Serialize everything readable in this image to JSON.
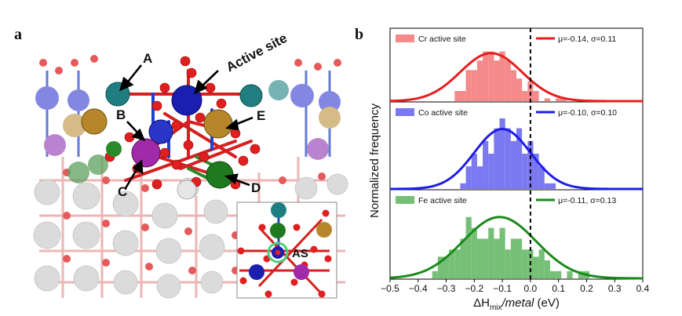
{
  "panel_a": {
    "letter": "a",
    "labels": {
      "active_site": "Active site",
      "A": "A",
      "B": "B",
      "C": "C",
      "D": "D",
      "E": "E",
      "inset": "AS"
    },
    "colors": {
      "oxygen": "#e02a2a",
      "nitrogen": "#2a3fd0",
      "teal": "#1f7f80",
      "gold": "#b8862a",
      "magenta": "#a02aa8",
      "green": "#2a8a2a",
      "white": "#dcdcdc",
      "blue_atom": "#1a1fb0"
    }
  },
  "panel_b": {
    "letter": "b",
    "chart_data": {
      "type": "histogram",
      "xlabel_prefix": "ΔH",
      "xlabel_sub": "mix",
      "xlabel_italic": "/metal",
      "xlabel_unit": " (eV)",
      "ylabel": "Normalized frequency",
      "xlim": [
        -0.5,
        0.4
      ],
      "xticks": [
        "−0.5",
        "−0.4",
        "−0.3",
        "−0.2",
        "−0.1",
        "0.0",
        "0.1",
        "0.2",
        "0.3",
        "0.4"
      ],
      "xtick_values": [
        -0.5,
        -0.4,
        -0.3,
        -0.2,
        -0.1,
        0.0,
        0.1,
        0.2,
        0.3,
        0.4
      ],
      "vline_x": 0.0,
      "bin_width": 0.02,
      "series": [
        {
          "name": "Cr active site",
          "fit_label": "μ=-0.14, σ=0.11",
          "mu": -0.14,
          "sigma": 0.11,
          "bar_color": "#f48a8a",
          "line_color": "#e61e1e",
          "bins": [
            {
              "x": -0.26,
              "h": 0.18
            },
            {
              "x": -0.24,
              "h": 0.18
            },
            {
              "x": -0.22,
              "h": 0.55
            },
            {
              "x": -0.2,
              "h": 0.55
            },
            {
              "x": -0.18,
              "h": 0.72
            },
            {
              "x": -0.16,
              "h": 0.88
            },
            {
              "x": -0.14,
              "h": 0.88
            },
            {
              "x": -0.12,
              "h": 0.72
            },
            {
              "x": -0.1,
              "h": 0.88
            },
            {
              "x": -0.08,
              "h": 0.72
            },
            {
              "x": -0.06,
              "h": 0.55
            },
            {
              "x": -0.04,
              "h": 0.4
            },
            {
              "x": -0.02,
              "h": 0.18
            },
            {
              "x": 0.0,
              "h": 0.35
            },
            {
              "x": 0.02,
              "h": 0.18
            },
            {
              "x": 0.06,
              "h": 0.05
            },
            {
              "x": 0.1,
              "h": 0.05
            },
            {
              "x": 0.12,
              "h": 0.05
            }
          ]
        },
        {
          "name": "Co active site",
          "fit_label": "μ=-0.10, σ=0.10",
          "mu": -0.1,
          "sigma": 0.1,
          "bar_color": "#7b78f0",
          "line_color": "#1e1ee6",
          "bins": [
            {
              "x": -0.24,
              "h": 0.08
            },
            {
              "x": -0.22,
              "h": 0.32
            },
            {
              "x": -0.2,
              "h": 0.5
            },
            {
              "x": -0.18,
              "h": 0.32
            },
            {
              "x": -0.16,
              "h": 0.68
            },
            {
              "x": -0.14,
              "h": 0.5
            },
            {
              "x": -0.12,
              "h": 0.86
            },
            {
              "x": -0.1,
              "h": 1.0
            },
            {
              "x": -0.08,
              "h": 0.86
            },
            {
              "x": -0.06,
              "h": 0.68
            },
            {
              "x": -0.04,
              "h": 0.86
            },
            {
              "x": -0.02,
              "h": 0.5
            },
            {
              "x": 0.0,
              "h": 0.68
            },
            {
              "x": 0.02,
              "h": 0.5
            },
            {
              "x": 0.04,
              "h": 0.32
            },
            {
              "x": 0.06,
              "h": 0.08
            },
            {
              "x": 0.08,
              "h": 0.08
            }
          ]
        },
        {
          "name": "Fe active site",
          "fit_label": "μ=-0.11, σ=0.13",
          "mu": -0.11,
          "sigma": 0.13,
          "bar_color": "#76bf76",
          "line_color": "#1b8a1b",
          "bins": [
            {
              "x": -0.34,
              "h": 0.1
            },
            {
              "x": -0.32,
              "h": 0.3
            },
            {
              "x": -0.3,
              "h": 0.3
            },
            {
              "x": -0.28,
              "h": 0.4
            },
            {
              "x": -0.26,
              "h": 0.4
            },
            {
              "x": -0.24,
              "h": 0.55
            },
            {
              "x": -0.22,
              "h": 0.85
            },
            {
              "x": -0.2,
              "h": 0.7
            },
            {
              "x": -0.18,
              "h": 0.55
            },
            {
              "x": -0.16,
              "h": 0.55
            },
            {
              "x": -0.14,
              "h": 0.7
            },
            {
              "x": -0.12,
              "h": 0.55
            },
            {
              "x": -0.1,
              "h": 0.7
            },
            {
              "x": -0.08,
              "h": 0.4
            },
            {
              "x": -0.06,
              "h": 0.55
            },
            {
              "x": -0.04,
              "h": 0.55
            },
            {
              "x": -0.02,
              "h": 0.4
            },
            {
              "x": 0.0,
              "h": 0.4
            },
            {
              "x": 0.02,
              "h": 0.3
            },
            {
              "x": 0.04,
              "h": 0.4
            },
            {
              "x": 0.06,
              "h": 0.25
            },
            {
              "x": 0.08,
              "h": 0.1
            },
            {
              "x": 0.1,
              "h": 0.1
            },
            {
              "x": 0.14,
              "h": 0.1
            },
            {
              "x": 0.18,
              "h": 0.1
            },
            {
              "x": 0.2,
              "h": 0.1
            }
          ]
        }
      ]
    }
  }
}
